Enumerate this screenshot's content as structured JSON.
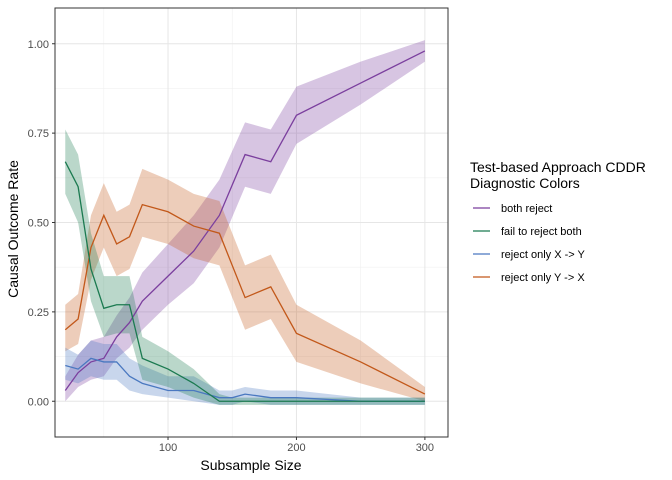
{
  "chart_data": {
    "type": "line",
    "xlabel": "Subsample Size",
    "ylabel": "Causal Outcome Rate",
    "xlim": [
      12,
      318
    ],
    "ylim": [
      -0.1,
      1.1
    ],
    "x_ticks": [
      100,
      200,
      300
    ],
    "x_tick_labels": [
      "100",
      "200",
      "300"
    ],
    "y_ticks": [
      0,
      0.25,
      0.5,
      0.75,
      1.0
    ],
    "y_tick_labels": [
      "0.00",
      "0.25",
      "0.50",
      "0.75",
      "1.00"
    ],
    "grid": true,
    "legend": {
      "title_lines": [
        "Test-based Approach CDDR",
        "Diagnostic Colors"
      ],
      "placement": "right"
    },
    "series": [
      {
        "name": "both reject",
        "color": "#7B3F9E",
        "x": [
          20,
          30,
          40,
          50,
          60,
          70,
          80,
          100,
          120,
          140,
          160,
          180,
          200,
          250,
          300
        ],
        "y": [
          0.03,
          0.08,
          0.11,
          0.12,
          0.18,
          0.22,
          0.28,
          0.35,
          0.42,
          0.52,
          0.69,
          0.67,
          0.8,
          0.89,
          0.98
        ],
        "lower": [
          0.0,
          0.04,
          0.06,
          0.07,
          0.12,
          0.15,
          0.2,
          0.27,
          0.33,
          0.43,
          0.6,
          0.58,
          0.72,
          0.83,
          0.95
        ],
        "upper": [
          0.07,
          0.13,
          0.17,
          0.18,
          0.24,
          0.29,
          0.36,
          0.44,
          0.52,
          0.62,
          0.78,
          0.76,
          0.88,
          0.95,
          1.01
        ]
      },
      {
        "name": "fail to reject both",
        "color": "#1B7A50",
        "x": [
          20,
          30,
          40,
          50,
          60,
          70,
          80,
          100,
          120,
          140,
          150,
          160,
          180,
          200,
          250,
          300
        ],
        "y": [
          0.67,
          0.6,
          0.37,
          0.26,
          0.27,
          0.27,
          0.12,
          0.09,
          0.05,
          0.0,
          0.0,
          0.0,
          0.0,
          0.0,
          0.0,
          0.0
        ],
        "lower": [
          0.58,
          0.5,
          0.28,
          0.18,
          0.19,
          0.19,
          0.06,
          0.04,
          0.01,
          -0.01,
          -0.01,
          -0.01,
          -0.01,
          -0.01,
          -0.01,
          -0.01
        ],
        "upper": [
          0.76,
          0.69,
          0.47,
          0.35,
          0.35,
          0.35,
          0.18,
          0.14,
          0.09,
          0.02,
          0.01,
          0.01,
          0.01,
          0.01,
          0.01,
          0.01
        ]
      },
      {
        "name": "reject only X -> Y",
        "color": "#4A78C0",
        "x": [
          20,
          30,
          40,
          50,
          60,
          70,
          80,
          100,
          120,
          140,
          150,
          160,
          180,
          200,
          250,
          300
        ],
        "y": [
          0.1,
          0.09,
          0.12,
          0.11,
          0.11,
          0.07,
          0.05,
          0.03,
          0.03,
          0.01,
          0.01,
          0.02,
          0.01,
          0.01,
          0.0,
          0.0
        ],
        "lower": [
          0.06,
          0.05,
          0.07,
          0.06,
          0.06,
          0.03,
          0.02,
          0.01,
          0.0,
          -0.01,
          -0.01,
          0.0,
          -0.01,
          -0.01,
          -0.01,
          -0.01
        ],
        "upper": [
          0.15,
          0.13,
          0.17,
          0.16,
          0.16,
          0.12,
          0.1,
          0.07,
          0.07,
          0.03,
          0.03,
          0.04,
          0.03,
          0.03,
          0.01,
          0.01
        ]
      },
      {
        "name": "reject only Y -> X",
        "color": "#C2581A",
        "x": [
          20,
          30,
          40,
          50,
          60,
          70,
          80,
          100,
          120,
          140,
          160,
          180,
          200,
          250,
          300
        ],
        "y": [
          0.2,
          0.23,
          0.43,
          0.52,
          0.44,
          0.46,
          0.55,
          0.53,
          0.49,
          0.47,
          0.29,
          0.32,
          0.19,
          0.11,
          0.02
        ],
        "lower": [
          0.14,
          0.16,
          0.34,
          0.43,
          0.35,
          0.37,
          0.46,
          0.44,
          0.4,
          0.38,
          0.2,
          0.23,
          0.11,
          0.05,
          0.0
        ],
        "upper": [
          0.27,
          0.3,
          0.52,
          0.61,
          0.53,
          0.55,
          0.65,
          0.62,
          0.58,
          0.56,
          0.38,
          0.41,
          0.27,
          0.17,
          0.04
        ]
      }
    ]
  }
}
